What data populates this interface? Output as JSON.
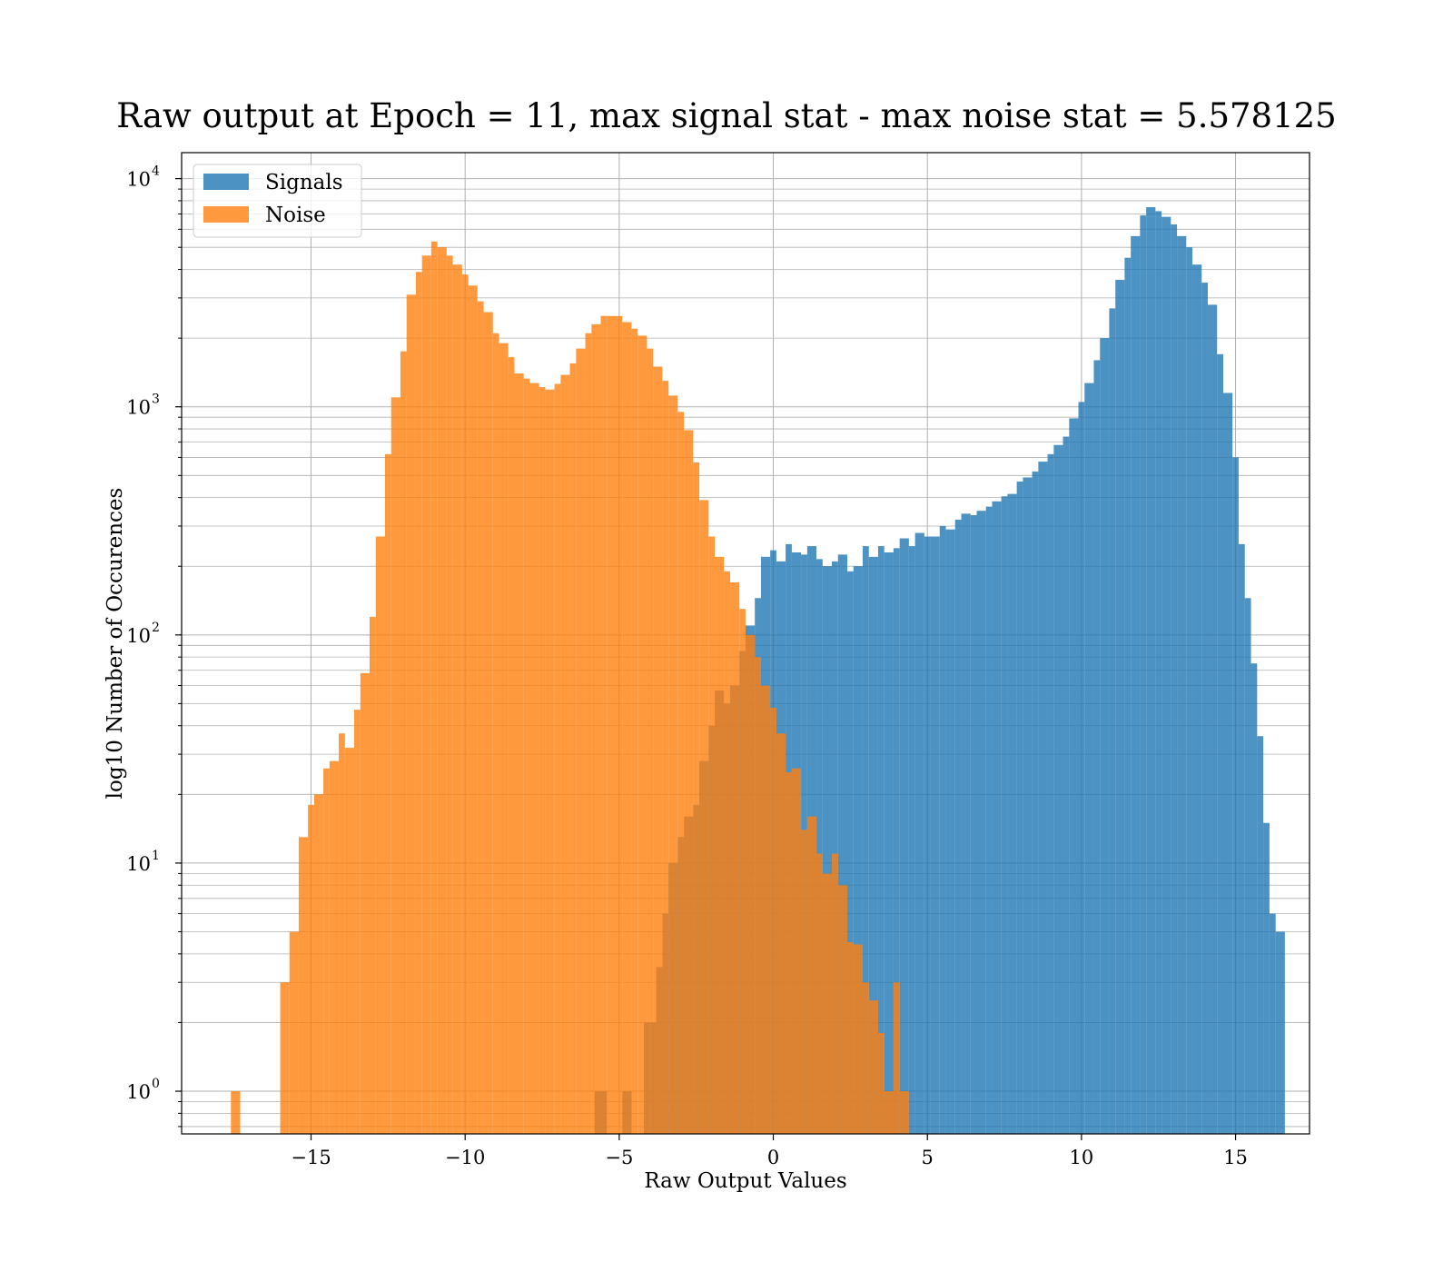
{
  "chart_data": {
    "type": "bar",
    "title": "Raw output at Epoch = 11, max signal stat - max noise stat = 5.578125",
    "xlabel": "Raw Output Values",
    "ylabel": "log10 Number of Occurences",
    "xlim": [
      -19.2,
      17.4
    ],
    "ylim": [
      0.65,
      13000
    ],
    "log_y": true,
    "grid": true,
    "legend_position": "top-left",
    "x_ticks": [
      {
        "value": -15,
        "label": "−15"
      },
      {
        "value": -10,
        "label": "−10"
      },
      {
        "value": -5,
        "label": "−5"
      },
      {
        "value": 0,
        "label": "0"
      },
      {
        "value": 5,
        "label": "5"
      },
      {
        "value": 10,
        "label": "10"
      },
      {
        "value": 15,
        "label": "15"
      }
    ],
    "y_ticks": [
      {
        "value": 1,
        "base": "10",
        "exp": "0"
      },
      {
        "value": 10,
        "base": "10",
        "exp": "1"
      },
      {
        "value": 100,
        "base": "10",
        "exp": "2"
      },
      {
        "value": 1000,
        "base": "10",
        "exp": "3"
      },
      {
        "value": 10000,
        "base": "10",
        "exp": "4"
      }
    ],
    "series": [
      {
        "name": "Signals",
        "color": "#1f77b4",
        "opacity": 0.8,
        "bins": [
          [
            -5.8,
            -5.4,
            1
          ],
          [
            -4.9,
            -4.6,
            1
          ],
          [
            -4.2,
            -3.8,
            2
          ],
          [
            -3.8,
            -3.6,
            3.5
          ],
          [
            -3.6,
            -3.4,
            6
          ],
          [
            -3.4,
            -3.1,
            10
          ],
          [
            -3.1,
            -2.9,
            13
          ],
          [
            -2.9,
            -2.6,
            16
          ],
          [
            -2.6,
            -2.4,
            18
          ],
          [
            -2.4,
            -2.1,
            28
          ],
          [
            -2.1,
            -1.9,
            40
          ],
          [
            -1.9,
            -1.6,
            57
          ],
          [
            -1.6,
            -1.4,
            50
          ],
          [
            -1.4,
            -1.1,
            60
          ],
          [
            -1.1,
            -0.9,
            85
          ],
          [
            -0.9,
            -0.6,
            110
          ],
          [
            -0.6,
            -0.4,
            145
          ],
          [
            -0.4,
            -0.1,
            220
          ],
          [
            -0.1,
            0.1,
            235
          ],
          [
            0.1,
            0.4,
            210
          ],
          [
            0.4,
            0.6,
            250
          ],
          [
            0.6,
            0.9,
            230
          ],
          [
            0.9,
            1.1,
            225
          ],
          [
            1.1,
            1.4,
            245
          ],
          [
            1.4,
            1.6,
            215
          ],
          [
            1.6,
            1.9,
            200
          ],
          [
            1.9,
            2.1,
            210
          ],
          [
            2.1,
            2.4,
            225
          ],
          [
            2.4,
            2.6,
            190
          ],
          [
            2.6,
            2.9,
            200
          ],
          [
            2.9,
            3.1,
            245
          ],
          [
            3.1,
            3.4,
            220
          ],
          [
            3.4,
            3.6,
            245
          ],
          [
            3.6,
            3.9,
            230
          ],
          [
            3.9,
            4.1,
            240
          ],
          [
            4.1,
            4.4,
            265
          ],
          [
            4.4,
            4.6,
            245
          ],
          [
            4.6,
            4.9,
            280
          ],
          [
            4.9,
            5.1,
            270
          ],
          [
            5.1,
            5.4,
            270
          ],
          [
            5.4,
            5.6,
            300
          ],
          [
            5.6,
            5.9,
            290
          ],
          [
            5.9,
            6.1,
            320
          ],
          [
            6.1,
            6.4,
            340
          ],
          [
            6.4,
            6.6,
            335
          ],
          [
            6.6,
            6.9,
            350
          ],
          [
            6.9,
            7.1,
            365
          ],
          [
            7.1,
            7.4,
            385
          ],
          [
            7.4,
            7.6,
            405
          ],
          [
            7.6,
            7.9,
            415
          ],
          [
            7.9,
            8.1,
            470
          ],
          [
            8.1,
            8.4,
            490
          ],
          [
            8.4,
            8.6,
            520
          ],
          [
            8.6,
            8.9,
            575
          ],
          [
            8.9,
            9.1,
            620
          ],
          [
            9.1,
            9.4,
            680
          ],
          [
            9.4,
            9.6,
            740
          ],
          [
            9.6,
            9.9,
            890
          ],
          [
            9.9,
            10.1,
            1050
          ],
          [
            10.1,
            10.4,
            1270
          ],
          [
            10.4,
            10.6,
            1600
          ],
          [
            10.6,
            10.9,
            2000
          ],
          [
            10.9,
            11.1,
            2700
          ],
          [
            11.1,
            11.4,
            3600
          ],
          [
            11.4,
            11.6,
            4500
          ],
          [
            11.6,
            11.9,
            5600
          ],
          [
            11.9,
            12.1,
            6900
          ],
          [
            12.1,
            12.4,
            7500
          ],
          [
            12.4,
            12.6,
            7200
          ],
          [
            12.6,
            12.9,
            6800
          ],
          [
            12.9,
            13.1,
            6300
          ],
          [
            13.1,
            13.4,
            5600
          ],
          [
            13.4,
            13.6,
            5000
          ],
          [
            13.6,
            13.9,
            4200
          ],
          [
            13.9,
            14.1,
            3500
          ],
          [
            14.1,
            14.4,
            2800
          ],
          [
            14.4,
            14.6,
            1700
          ],
          [
            14.6,
            14.9,
            1150
          ],
          [
            14.9,
            15.1,
            600
          ],
          [
            15.1,
            15.3,
            250
          ],
          [
            15.3,
            15.5,
            145
          ],
          [
            15.5,
            15.7,
            75
          ],
          [
            15.7,
            15.9,
            36
          ],
          [
            15.9,
            16.1,
            15
          ],
          [
            16.1,
            16.3,
            6
          ],
          [
            16.3,
            16.6,
            5
          ]
        ]
      },
      {
        "name": "Noise",
        "color": "#ff7f0e",
        "opacity": 0.8,
        "bins": [
          [
            -17.6,
            -17.3,
            1
          ],
          [
            -16.0,
            -15.7,
            3
          ],
          [
            -15.7,
            -15.4,
            5
          ],
          [
            -15.4,
            -15.1,
            13
          ],
          [
            -15.1,
            -14.9,
            18
          ],
          [
            -14.9,
            -14.6,
            20
          ],
          [
            -14.6,
            -14.4,
            26
          ],
          [
            -14.4,
            -14.1,
            28
          ],
          [
            -14.1,
            -13.9,
            37
          ],
          [
            -13.9,
            -13.6,
            32
          ],
          [
            -13.6,
            -13.4,
            47
          ],
          [
            -13.4,
            -13.1,
            68
          ],
          [
            -13.1,
            -12.9,
            120
          ],
          [
            -12.9,
            -12.6,
            270
          ],
          [
            -12.6,
            -12.4,
            620
          ],
          [
            -12.4,
            -12.1,
            1100
          ],
          [
            -12.1,
            -11.9,
            1750
          ],
          [
            -11.9,
            -11.6,
            3100
          ],
          [
            -11.6,
            -11.4,
            3900
          ],
          [
            -11.4,
            -11.1,
            4600
          ],
          [
            -11.1,
            -10.9,
            5300
          ],
          [
            -10.9,
            -10.6,
            5000
          ],
          [
            -10.6,
            -10.4,
            4600
          ],
          [
            -10.4,
            -10.1,
            4200
          ],
          [
            -10.1,
            -9.9,
            3800
          ],
          [
            -9.9,
            -9.6,
            3400
          ],
          [
            -9.6,
            -9.4,
            2900
          ],
          [
            -9.4,
            -9.1,
            2600
          ],
          [
            -9.1,
            -8.9,
            2100
          ],
          [
            -8.9,
            -8.6,
            1900
          ],
          [
            -8.6,
            -8.4,
            1650
          ],
          [
            -8.4,
            -8.1,
            1400
          ],
          [
            -8.1,
            -7.9,
            1330
          ],
          [
            -7.9,
            -7.6,
            1270
          ],
          [
            -7.6,
            -7.4,
            1220
          ],
          [
            -7.4,
            -7.1,
            1190
          ],
          [
            -7.1,
            -6.9,
            1260
          ],
          [
            -6.9,
            -6.6,
            1380
          ],
          [
            -6.6,
            -6.4,
            1550
          ],
          [
            -6.4,
            -6.1,
            1800
          ],
          [
            -6.1,
            -5.9,
            2100
          ],
          [
            -5.9,
            -5.6,
            2300
          ],
          [
            -5.6,
            -5.4,
            2500
          ],
          [
            -5.4,
            -5.1,
            2500
          ],
          [
            -5.1,
            -4.9,
            2500
          ],
          [
            -4.9,
            -4.6,
            2350
          ],
          [
            -4.6,
            -4.4,
            2200
          ],
          [
            -4.4,
            -4.1,
            2050
          ],
          [
            -4.1,
            -3.9,
            1800
          ],
          [
            -3.9,
            -3.6,
            1500
          ],
          [
            -3.6,
            -3.4,
            1300
          ],
          [
            -3.4,
            -3.1,
            1120
          ],
          [
            -3.1,
            -2.9,
            950
          ],
          [
            -2.9,
            -2.6,
            790
          ],
          [
            -2.6,
            -2.4,
            570
          ],
          [
            -2.4,
            -2.1,
            390
          ],
          [
            -2.1,
            -1.9,
            270
          ],
          [
            -1.9,
            -1.6,
            220
          ],
          [
            -1.6,
            -1.4,
            190
          ],
          [
            -1.4,
            -1.1,
            170
          ],
          [
            -1.1,
            -0.9,
            130
          ],
          [
            -0.9,
            -0.6,
            100
          ],
          [
            -0.6,
            -0.4,
            80
          ],
          [
            -0.4,
            -0.1,
            60
          ],
          [
            -0.1,
            0.1,
            48
          ],
          [
            0.1,
            0.4,
            37
          ],
          [
            0.4,
            0.6,
            25
          ],
          [
            0.6,
            0.9,
            26
          ],
          [
            0.9,
            1.1,
            14
          ],
          [
            1.1,
            1.4,
            16
          ],
          [
            1.4,
            1.6,
            11
          ],
          [
            1.6,
            1.9,
            9
          ],
          [
            1.9,
            2.1,
            11
          ],
          [
            2.1,
            2.4,
            8
          ],
          [
            2.4,
            2.6,
            4.5
          ],
          [
            2.6,
            2.9,
            4.4
          ],
          [
            2.9,
            3.1,
            3
          ],
          [
            3.1,
            3.4,
            2.5
          ],
          [
            3.4,
            3.6,
            1.8
          ],
          [
            3.6,
            3.9,
            1
          ],
          [
            3.9,
            4.1,
            3
          ],
          [
            4.1,
            4.4,
            1
          ]
        ]
      }
    ]
  }
}
